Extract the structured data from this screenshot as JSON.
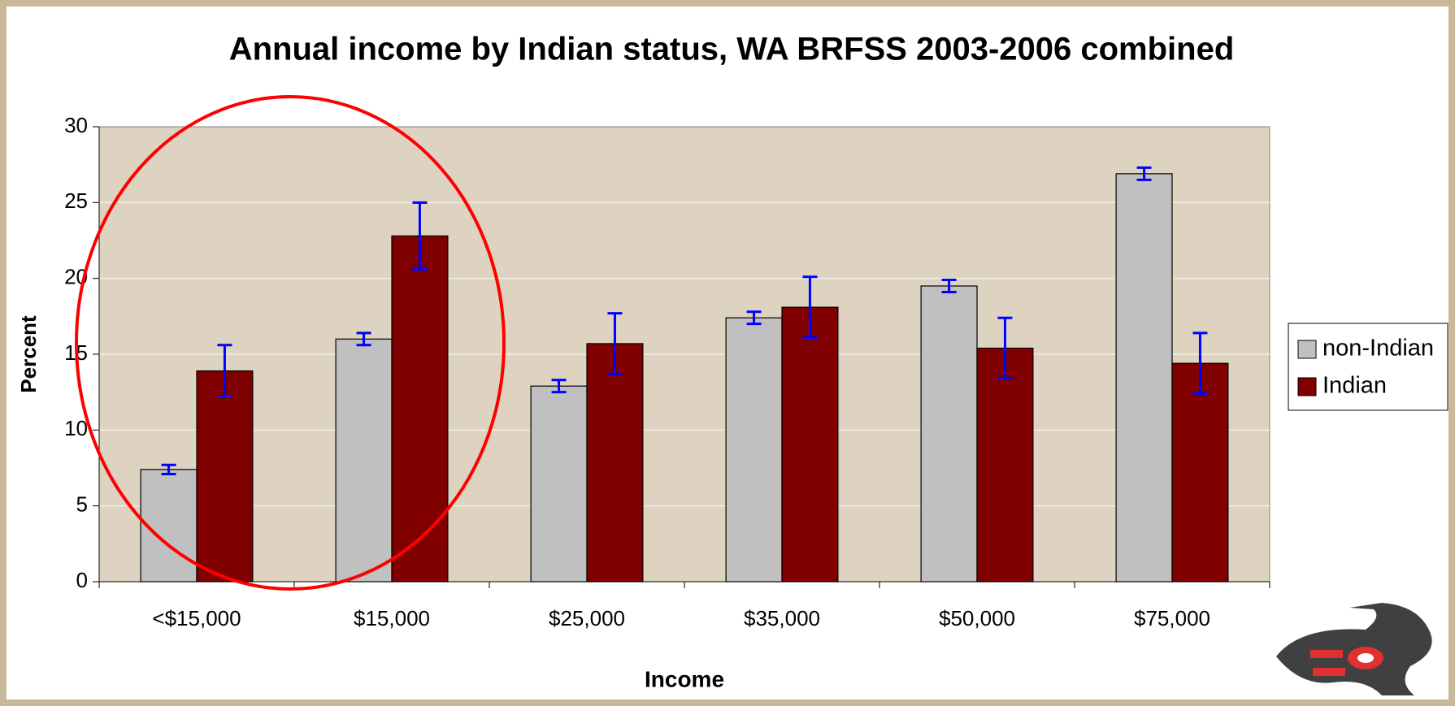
{
  "chart_data": {
    "type": "bar",
    "title": "Annual income by Indian status, WA BRFSS 2003-2006 combined",
    "xlabel": "Income",
    "ylabel": "Percent",
    "categories": [
      "<$15,000",
      "$15,000",
      "$25,000",
      "$35,000",
      "$50,000",
      "$75,000"
    ],
    "series": [
      {
        "name": "non-Indian",
        "color": "#c0c0c0",
        "values": [
          7.4,
          16.0,
          12.9,
          17.4,
          19.5,
          26.9
        ],
        "errors": [
          0.3,
          0.4,
          0.4,
          0.4,
          0.4,
          0.4
        ]
      },
      {
        "name": "Indian",
        "color": "#800000",
        "values": [
          13.9,
          22.8,
          15.7,
          18.1,
          15.4,
          14.4
        ],
        "errors": [
          1.7,
          2.2,
          2.0,
          2.0,
          2.0,
          2.0
        ]
      }
    ],
    "error_color": "#0000ff",
    "ylim": [
      0,
      30
    ],
    "yticks": [
      0,
      5,
      10,
      15,
      20,
      25,
      30
    ],
    "grid": true,
    "legend": "right"
  }
}
